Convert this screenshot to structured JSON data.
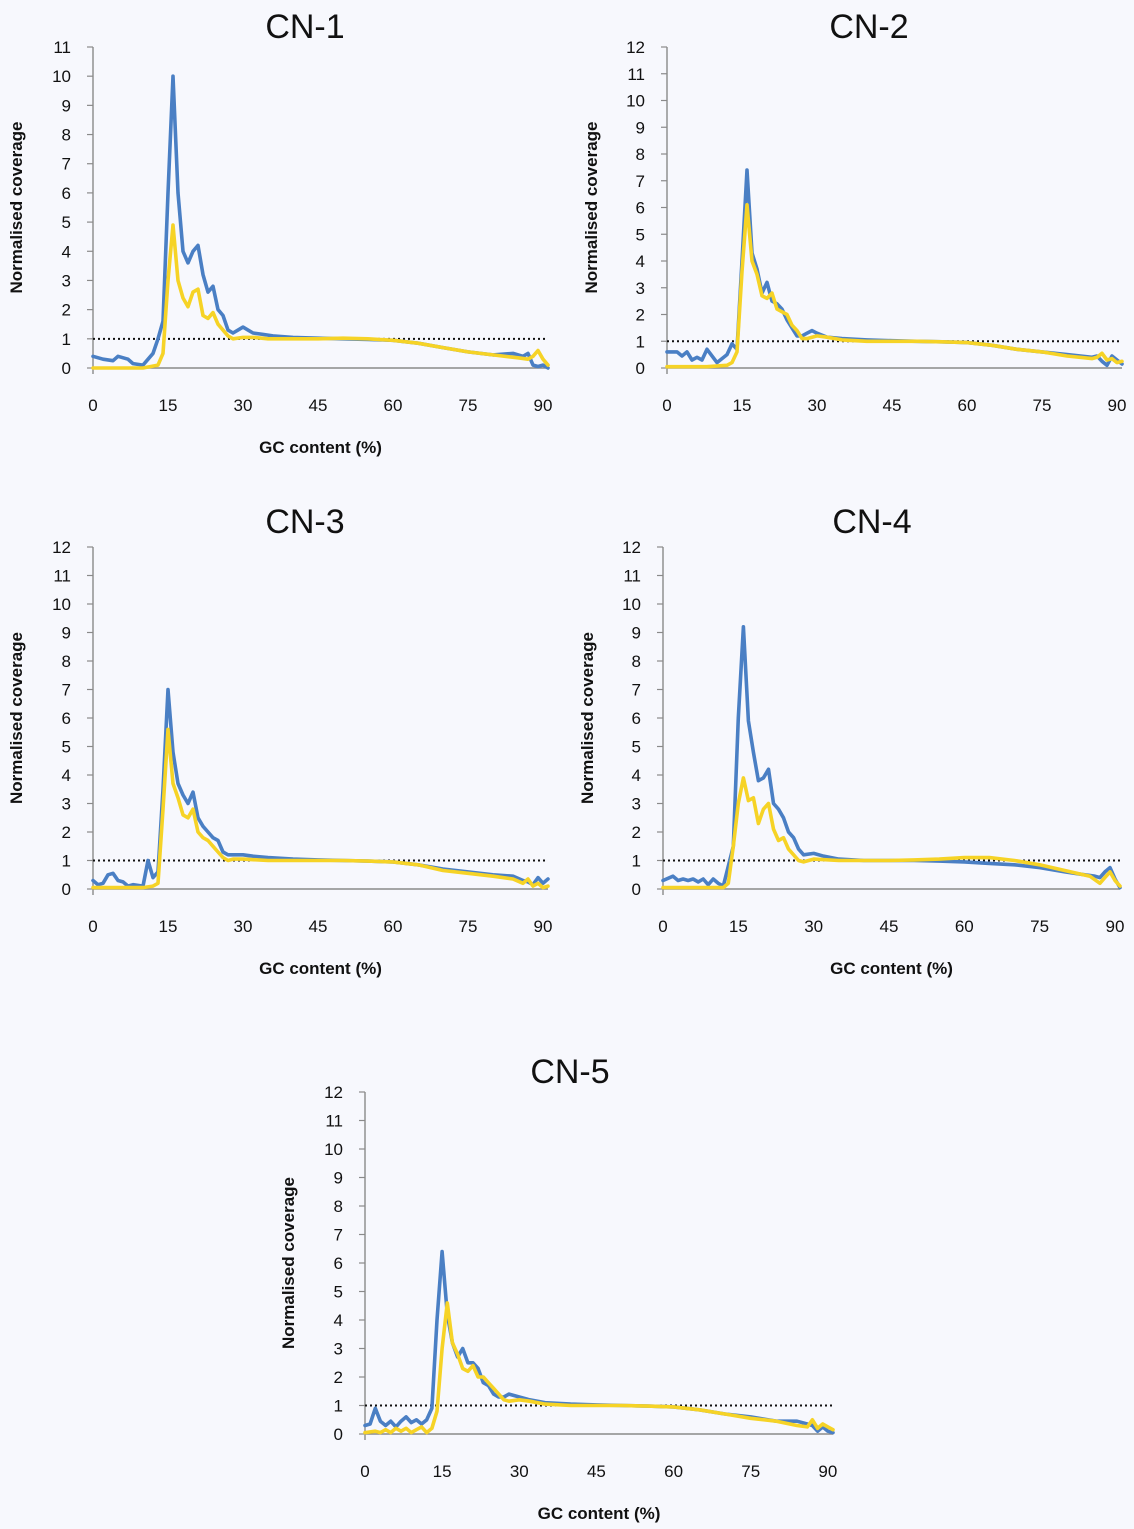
{
  "chart_data": [
    {
      "type": "line",
      "title": "CN-1",
      "xlabel": "GC content (%)",
      "ylabel": "Normalised coverage",
      "xlim": [
        0,
        91
      ],
      "ylim": [
        0,
        11
      ],
      "xticks": [
        "0",
        "15",
        "30",
        "45",
        "60",
        "75",
        "90"
      ],
      "yticks": [
        "0",
        "1",
        "2",
        "3",
        "4",
        "5",
        "6",
        "7",
        "8",
        "9",
        "10",
        "11"
      ],
      "reference_line_y": 1,
      "colors": [
        "#4a7fc4",
        "#f6d326"
      ],
      "series": [
        {
          "x": [
            0,
            2,
            4,
            5,
            7,
            8,
            10,
            12,
            13,
            14,
            15,
            16,
            17,
            18,
            19,
            20,
            21,
            22,
            23,
            24,
            25,
            26,
            27,
            28,
            29,
            30,
            31,
            32,
            34,
            36,
            40,
            45,
            50,
            55,
            60,
            65,
            70,
            75,
            80,
            84,
            86,
            87,
            88,
            89,
            90,
            91
          ],
          "y": [
            0.4,
            0.3,
            0.25,
            0.4,
            0.3,
            0.15,
            0.1,
            0.5,
            1.0,
            1.6,
            6.0,
            10.0,
            6.0,
            4.0,
            3.6,
            4.0,
            4.2,
            3.2,
            2.6,
            2.8,
            2.0,
            1.8,
            1.3,
            1.2,
            1.3,
            1.4,
            1.3,
            1.2,
            1.15,
            1.1,
            1.05,
            1.02,
            1.0,
            0.98,
            0.95,
            0.85,
            0.7,
            0.55,
            0.45,
            0.5,
            0.4,
            0.5,
            0.1,
            0.05,
            0.1,
            0.0
          ]
        },
        {
          "x": [
            0,
            10,
            13,
            14,
            15,
            16,
            17,
            18,
            19,
            20,
            21,
            22,
            23,
            24,
            25,
            26,
            27,
            28,
            30,
            32,
            35,
            40,
            45,
            50,
            55,
            60,
            65,
            70,
            75,
            80,
            85,
            87,
            88,
            89,
            90,
            91
          ],
          "y": [
            0.0,
            0.0,
            0.1,
            0.5,
            3.0,
            4.9,
            3.0,
            2.4,
            2.1,
            2.6,
            2.7,
            1.8,
            1.7,
            1.9,
            1.5,
            1.3,
            1.1,
            1.0,
            1.05,
            1.05,
            1.0,
            1.0,
            1.0,
            1.02,
            1.0,
            0.95,
            0.85,
            0.7,
            0.55,
            0.45,
            0.35,
            0.3,
            0.4,
            0.6,
            0.3,
            0.1
          ]
        }
      ]
    },
    {
      "type": "line",
      "title": "CN-2",
      "xlabel": "",
      "ylabel": "Normalised coverage",
      "xlim": [
        0,
        91
      ],
      "ylim": [
        0,
        12
      ],
      "xticks": [
        "0",
        "15",
        "30",
        "45",
        "60",
        "75",
        "90"
      ],
      "yticks": [
        "0",
        "1",
        "2",
        "3",
        "4",
        "5",
        "6",
        "7",
        "8",
        "9",
        "10",
        "11",
        "12"
      ],
      "reference_line_y": 1,
      "colors": [
        "#4a7fc4",
        "#f6d326"
      ],
      "series": [
        {
          "x": [
            0,
            2,
            3,
            4,
            5,
            6,
            7,
            8,
            10,
            12,
            13,
            14,
            15,
            16,
            17,
            18,
            19,
            20,
            21,
            22,
            23,
            24,
            25,
            26,
            27,
            28,
            29,
            30,
            32,
            35,
            40,
            45,
            50,
            55,
            60,
            65,
            70,
            75,
            80,
            85,
            86,
            87,
            88,
            89,
            90,
            91
          ],
          "y": [
            0.6,
            0.6,
            0.45,
            0.6,
            0.3,
            0.4,
            0.3,
            0.7,
            0.2,
            0.5,
            0.9,
            0.7,
            4.0,
            7.4,
            4.3,
            3.7,
            2.8,
            3.2,
            2.5,
            2.4,
            2.2,
            1.8,
            1.5,
            1.2,
            1.2,
            1.3,
            1.4,
            1.3,
            1.15,
            1.1,
            1.05,
            1.02,
            1.0,
            0.98,
            0.95,
            0.85,
            0.7,
            0.6,
            0.5,
            0.4,
            0.45,
            0.25,
            0.1,
            0.45,
            0.3,
            0.15
          ]
        },
        {
          "x": [
            0,
            8,
            12,
            13,
            14,
            15,
            16,
            17,
            18,
            19,
            20,
            21,
            22,
            23,
            24,
            25,
            26,
            27,
            28,
            30,
            32,
            35,
            40,
            45,
            50,
            55,
            60,
            65,
            70,
            75,
            80,
            85,
            86,
            87,
            88,
            89,
            90,
            91
          ],
          "y": [
            0.05,
            0.05,
            0.1,
            0.2,
            0.6,
            3.6,
            6.1,
            4.0,
            3.5,
            2.7,
            2.6,
            2.8,
            2.2,
            2.1,
            2.0,
            1.6,
            1.4,
            1.1,
            1.1,
            1.2,
            1.15,
            1.05,
            1.0,
            1.0,
            1.0,
            0.98,
            0.95,
            0.85,
            0.7,
            0.6,
            0.45,
            0.35,
            0.4,
            0.55,
            0.3,
            0.35,
            0.2,
            0.25
          ]
        }
      ]
    },
    {
      "type": "line",
      "title": "CN-3",
      "xlabel": "GC content (%)",
      "ylabel": "Normalised coverage",
      "xlim": [
        0,
        91
      ],
      "ylim": [
        0,
        12
      ],
      "xticks": [
        "0",
        "15",
        "30",
        "45",
        "60",
        "75",
        "90"
      ],
      "yticks": [
        "0",
        "1",
        "2",
        "3",
        "4",
        "5",
        "6",
        "7",
        "8",
        "9",
        "10",
        "11",
        "12"
      ],
      "reference_line_y": 1,
      "colors": [
        "#4a7fc4",
        "#f6d326"
      ],
      "series": [
        {
          "x": [
            0,
            1,
            2,
            3,
            4,
            5,
            6,
            7,
            8,
            10,
            11,
            12,
            13,
            14,
            15,
            16,
            17,
            18,
            19,
            20,
            21,
            22,
            23,
            24,
            25,
            26,
            27,
            28,
            30,
            32,
            35,
            40,
            45,
            50,
            55,
            60,
            65,
            70,
            75,
            80,
            84,
            86,
            87,
            88,
            89,
            90,
            91
          ],
          "y": [
            0.3,
            0.15,
            0.2,
            0.5,
            0.55,
            0.3,
            0.25,
            0.1,
            0.15,
            0.1,
            1.0,
            0.4,
            0.6,
            3.5,
            7.0,
            4.8,
            3.7,
            3.3,
            3.0,
            3.4,
            2.5,
            2.2,
            2.0,
            1.8,
            1.7,
            1.3,
            1.2,
            1.2,
            1.2,
            1.15,
            1.1,
            1.05,
            1.02,
            1.0,
            0.98,
            0.95,
            0.85,
            0.7,
            0.6,
            0.5,
            0.45,
            0.3,
            0.25,
            0.15,
            0.4,
            0.2,
            0.35
          ]
        },
        {
          "x": [
            0,
            10,
            12,
            13,
            14,
            15,
            16,
            17,
            18,
            19,
            20,
            21,
            22,
            23,
            24,
            25,
            26,
            27,
            28,
            30,
            35,
            40,
            45,
            50,
            55,
            60,
            65,
            70,
            75,
            80,
            84,
            86,
            87,
            88,
            89,
            90,
            91
          ],
          "y": [
            0.05,
            0.05,
            0.1,
            0.2,
            2.8,
            5.6,
            3.7,
            3.2,
            2.6,
            2.5,
            2.8,
            2.0,
            1.8,
            1.7,
            1.5,
            1.3,
            1.1,
            1.0,
            1.05,
            1.05,
            1.0,
            1.0,
            1.0,
            1.0,
            0.98,
            0.95,
            0.85,
            0.65,
            0.55,
            0.45,
            0.35,
            0.2,
            0.35,
            0.1,
            0.2,
            0.05,
            0.1
          ]
        }
      ]
    },
    {
      "type": "line",
      "title": "CN-4",
      "xlabel": "GC content (%)",
      "ylabel": "Normalised coverage",
      "xlim": [
        0,
        91
      ],
      "ylim": [
        0,
        12
      ],
      "xticks": [
        "0",
        "15",
        "30",
        "45",
        "60",
        "75",
        "90"
      ],
      "yticks": [
        "0",
        "1",
        "2",
        "3",
        "4",
        "5",
        "6",
        "7",
        "8",
        "9",
        "10",
        "11",
        "12"
      ],
      "reference_line_y": 1,
      "colors": [
        "#4a7fc4",
        "#f6d326"
      ],
      "series": [
        {
          "x": [
            0,
            2,
            3,
            4,
            5,
            6,
            7,
            8,
            9,
            10,
            11,
            12,
            14,
            15,
            16,
            17,
            18,
            19,
            20,
            21,
            22,
            23,
            24,
            25,
            26,
            27,
            28,
            30,
            32,
            35,
            40,
            45,
            50,
            55,
            60,
            65,
            70,
            75,
            80,
            84,
            86,
            87,
            88,
            89,
            90,
            91
          ],
          "y": [
            0.3,
            0.45,
            0.3,
            0.35,
            0.3,
            0.35,
            0.25,
            0.35,
            0.15,
            0.35,
            0.2,
            0.1,
            1.5,
            6.0,
            9.2,
            5.9,
            4.8,
            3.8,
            3.9,
            4.2,
            3.0,
            2.8,
            2.5,
            2.0,
            1.8,
            1.4,
            1.2,
            1.25,
            1.15,
            1.05,
            1.0,
            1.0,
            1.0,
            0.98,
            0.95,
            0.9,
            0.85,
            0.75,
            0.6,
            0.5,
            0.45,
            0.4,
            0.6,
            0.75,
            0.35,
            0.05
          ]
        },
        {
          "x": [
            0,
            12,
            13,
            14,
            15,
            16,
            17,
            18,
            19,
            20,
            21,
            22,
            23,
            24,
            25,
            26,
            27,
            28,
            30,
            35,
            40,
            45,
            50,
            55,
            60,
            65,
            70,
            75,
            80,
            85,
            87,
            88,
            89,
            90,
            91
          ],
          "y": [
            0.05,
            0.05,
            0.2,
            1.5,
            3.0,
            3.9,
            3.1,
            3.2,
            2.3,
            2.8,
            3.0,
            2.1,
            1.7,
            1.8,
            1.4,
            1.2,
            1.0,
            0.95,
            1.05,
            1.0,
            1.0,
            1.0,
            1.02,
            1.05,
            1.1,
            1.1,
            1.0,
            0.85,
            0.65,
            0.45,
            0.2,
            0.4,
            0.6,
            0.3,
            0.1
          ]
        }
      ]
    },
    {
      "type": "line",
      "title": "CN-5",
      "xlabel": "GC content (%)",
      "ylabel": "Normalised coverage",
      "xlim": [
        0,
        91
      ],
      "ylim": [
        0,
        12
      ],
      "xticks": [
        "0",
        "15",
        "30",
        "45",
        "60",
        "75",
        "90"
      ],
      "yticks": [
        "0",
        "1",
        "2",
        "3",
        "4",
        "5",
        "6",
        "7",
        "8",
        "9",
        "10",
        "11",
        "12"
      ],
      "reference_line_y": 1,
      "colors": [
        "#4a7fc4",
        "#f6d326"
      ],
      "series": [
        {
          "x": [
            0,
            1,
            2,
            3,
            4,
            5,
            6,
            7,
            8,
            9,
            10,
            11,
            12,
            13,
            14,
            15,
            16,
            17,
            18,
            19,
            20,
            21,
            22,
            23,
            24,
            25,
            26,
            27,
            28,
            30,
            32,
            35,
            40,
            45,
            50,
            55,
            60,
            65,
            70,
            75,
            80,
            84,
            86,
            87,
            88,
            89,
            90,
            91
          ],
          "y": [
            0.3,
            0.35,
            0.9,
            0.45,
            0.3,
            0.45,
            0.25,
            0.45,
            0.6,
            0.4,
            0.5,
            0.35,
            0.5,
            0.9,
            4.0,
            6.4,
            4.2,
            3.2,
            2.7,
            3.0,
            2.5,
            2.5,
            2.3,
            1.8,
            1.7,
            1.4,
            1.3,
            1.3,
            1.4,
            1.3,
            1.2,
            1.1,
            1.05,
            1.02,
            1.0,
            0.98,
            0.95,
            0.85,
            0.7,
            0.6,
            0.45,
            0.45,
            0.35,
            0.3,
            0.1,
            0.25,
            0.1,
            0.05
          ]
        },
        {
          "x": [
            0,
            2,
            3,
            4,
            5,
            6,
            7,
            8,
            9,
            10,
            11,
            12,
            13,
            14,
            15,
            16,
            17,
            18,
            19,
            20,
            21,
            22,
            23,
            24,
            25,
            26,
            27,
            28,
            30,
            32,
            35,
            40,
            45,
            50,
            55,
            60,
            65,
            70,
            75,
            80,
            84,
            86,
            87,
            88,
            89,
            90,
            91
          ],
          "y": [
            0.05,
            0.1,
            0.05,
            0.15,
            0.05,
            0.2,
            0.1,
            0.2,
            0.05,
            0.15,
            0.25,
            0.05,
            0.2,
            0.8,
            3.0,
            4.6,
            3.2,
            2.8,
            2.3,
            2.2,
            2.4,
            2.0,
            2.0,
            1.8,
            1.6,
            1.4,
            1.2,
            1.15,
            1.2,
            1.15,
            1.05,
            1.0,
            1.0,
            1.0,
            0.98,
            0.95,
            0.85,
            0.7,
            0.55,
            0.45,
            0.3,
            0.25,
            0.5,
            0.2,
            0.35,
            0.25,
            0.15
          ]
        }
      ]
    }
  ]
}
